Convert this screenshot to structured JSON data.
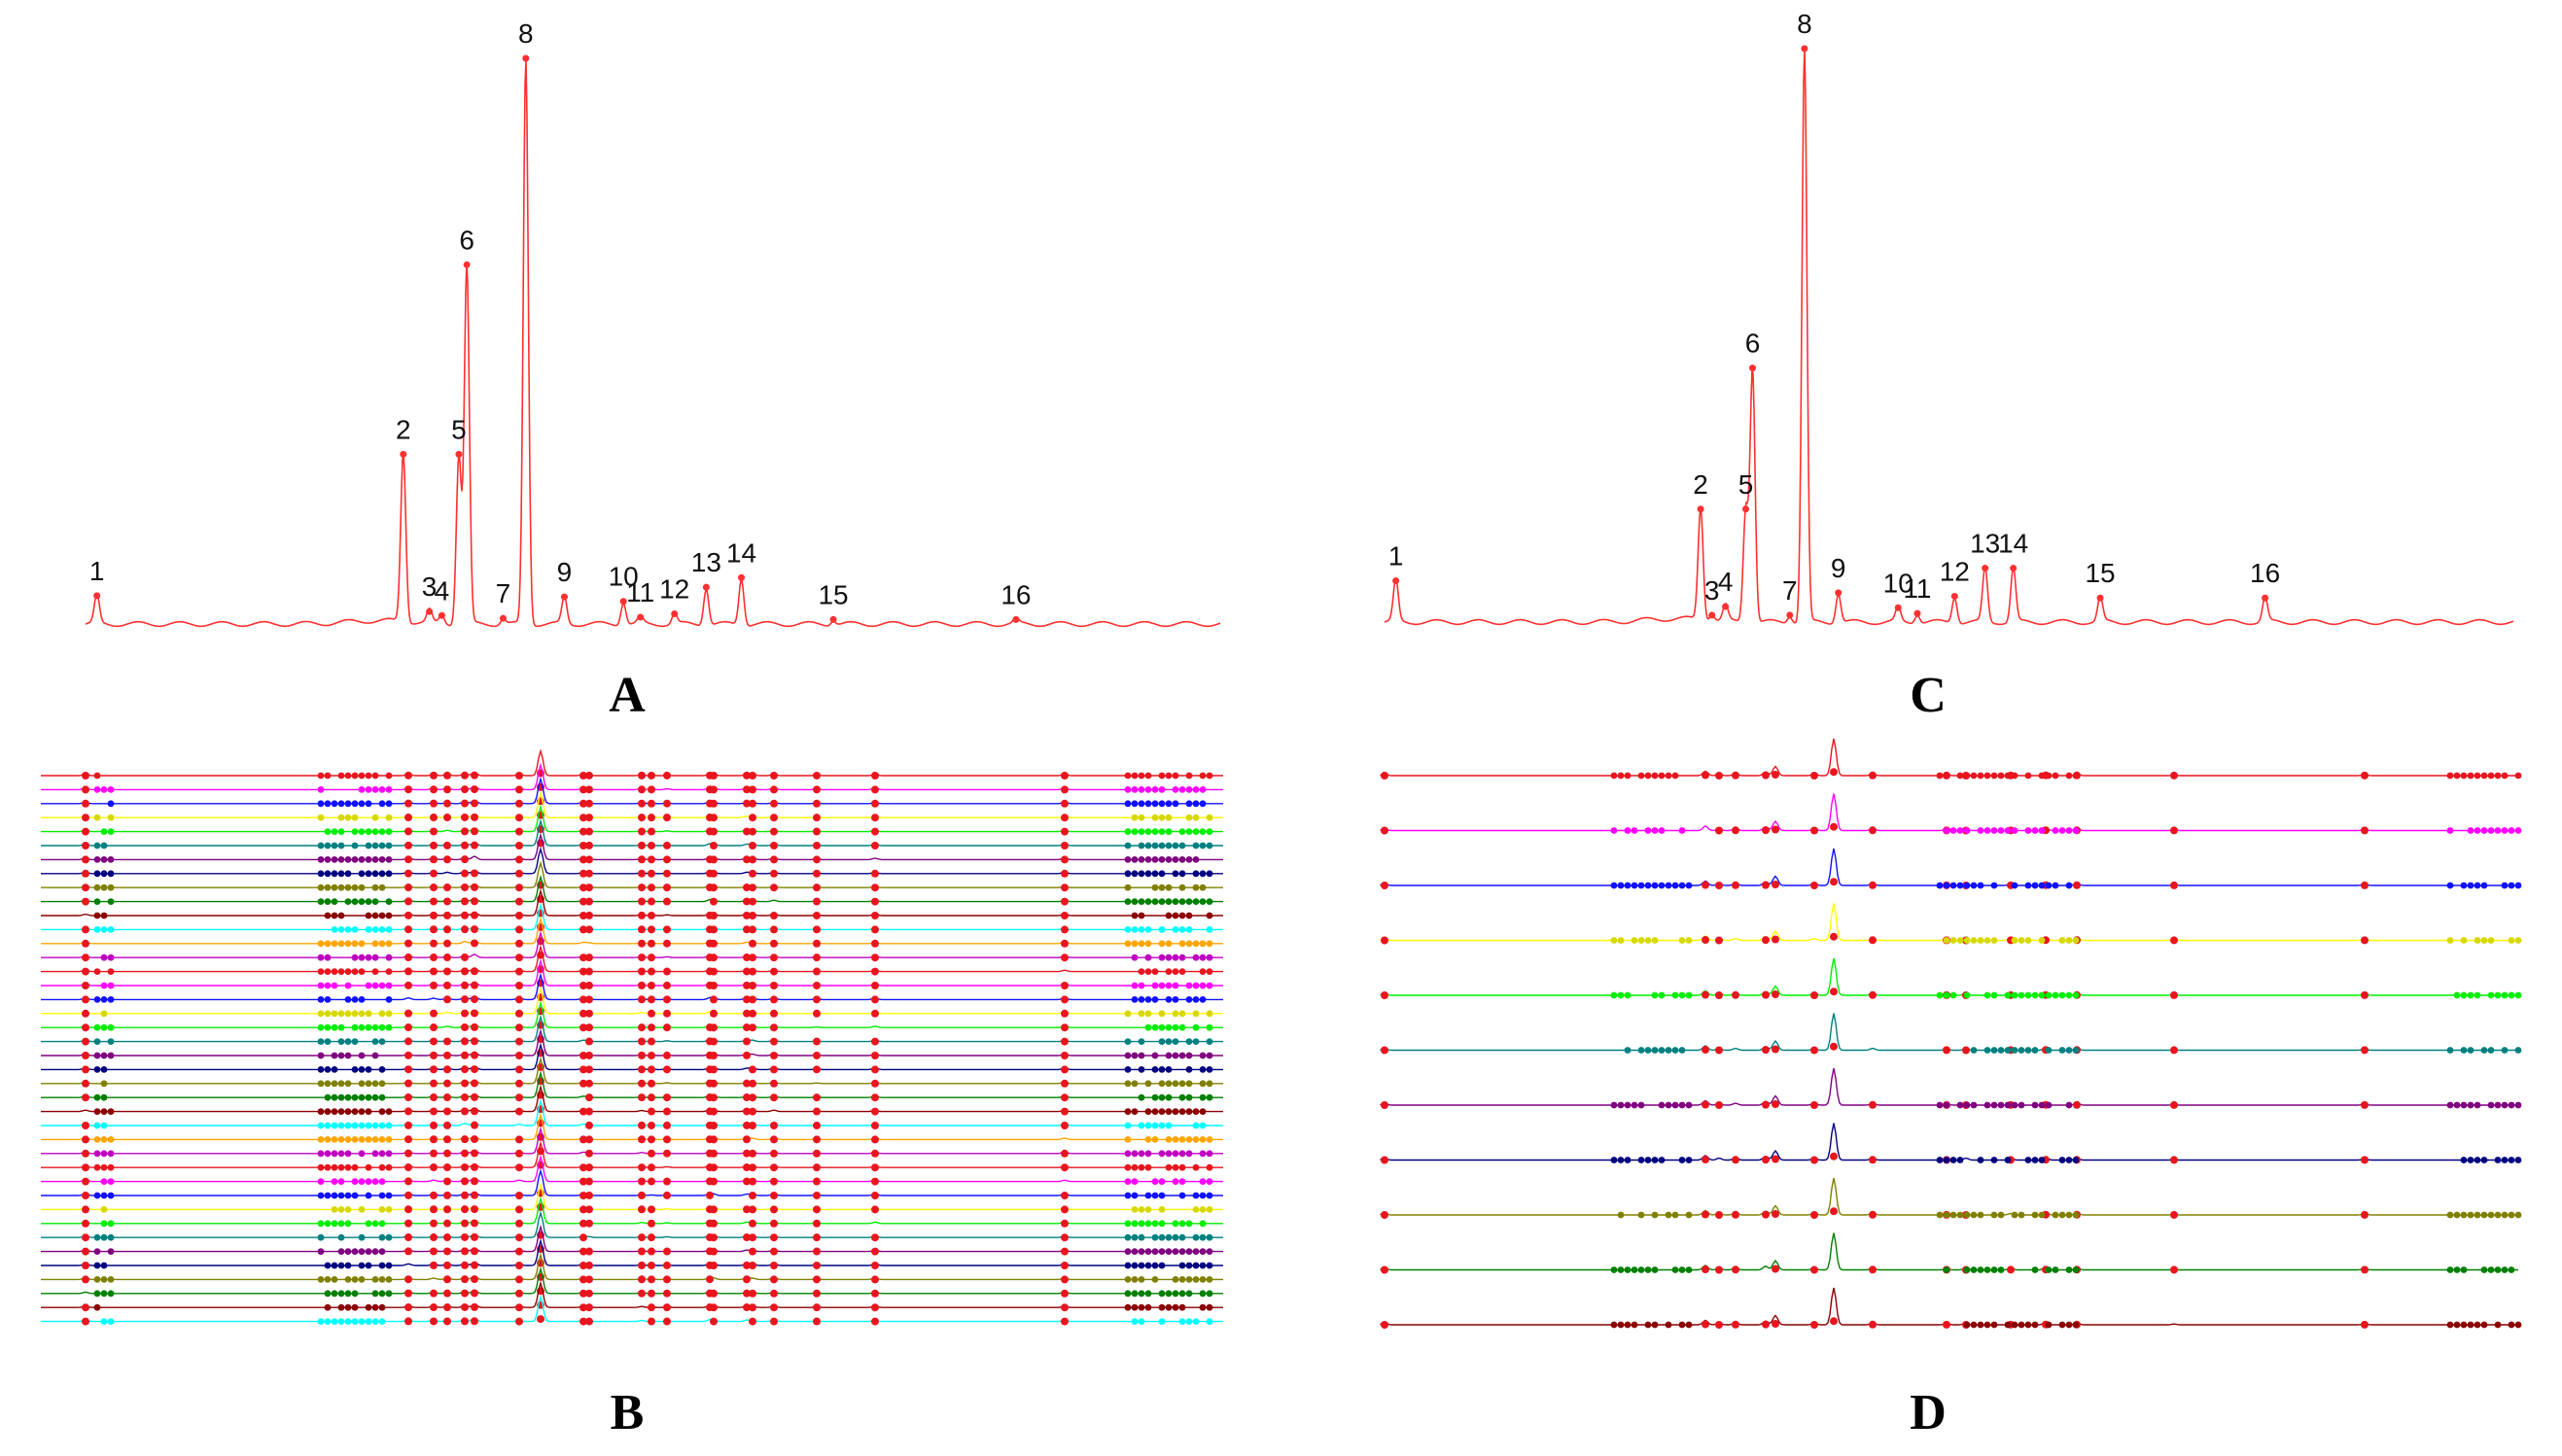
{
  "panels": {
    "A": {
      "letter": "A",
      "type": "line",
      "color": "#ff3030",
      "peaks": [
        {
          "label": "1",
          "rt": 1.0,
          "h": 0.05
        },
        {
          "label": "2",
          "rt": 28.0,
          "h": 0.3
        },
        {
          "label": "3",
          "rt": 30.3,
          "h": 0.022
        },
        {
          "label": "4",
          "rt": 31.4,
          "h": 0.015
        },
        {
          "label": "5",
          "rt": 32.9,
          "h": 0.3
        },
        {
          "label": "6",
          "rt": 33.6,
          "h": 0.635
        },
        {
          "label": "7",
          "rt": 36.8,
          "h": 0.01
        },
        {
          "label": "8",
          "rt": 38.8,
          "h": 1.0
        },
        {
          "label": "9",
          "rt": 42.2,
          "h": 0.048
        },
        {
          "label": "10",
          "rt": 47.4,
          "h": 0.04
        },
        {
          "label": "11",
          "rt": 48.9,
          "h": 0.012
        },
        {
          "label": "12",
          "rt": 51.9,
          "h": 0.018
        },
        {
          "label": "13",
          "rt": 54.7,
          "h": 0.065
        },
        {
          "label": "14",
          "rt": 57.8,
          "h": 0.082
        },
        {
          "label": "15",
          "rt": 65.9,
          "h": 0.008
        },
        {
          "label": "16",
          "rt": 82.0,
          "h": 0.008
        }
      ]
    },
    "C": {
      "letter": "C",
      "type": "line",
      "color": "#ff3030",
      "peaks": [
        {
          "label": "1",
          "rt": 1.0,
          "h": 0.072
        },
        {
          "label": "2",
          "rt": 28.0,
          "h": 0.197
        },
        {
          "label": "3",
          "rt": 29.0,
          "h": 0.012
        },
        {
          "label": "4",
          "rt": 30.2,
          "h": 0.027
        },
        {
          "label": "5",
          "rt": 32.0,
          "h": 0.197
        },
        {
          "label": "6",
          "rt": 32.6,
          "h": 0.443
        },
        {
          "label": "7",
          "rt": 35.9,
          "h": 0.012
        },
        {
          "label": "8",
          "rt": 37.2,
          "h": 1.0
        },
        {
          "label": "9",
          "rt": 40.2,
          "h": 0.051
        },
        {
          "label": "10",
          "rt": 45.5,
          "h": 0.025
        },
        {
          "label": "11",
          "rt": 47.2,
          "h": 0.015
        },
        {
          "label": "12",
          "rt": 50.5,
          "h": 0.045
        },
        {
          "label": "13",
          "rt": 53.2,
          "h": 0.094
        },
        {
          "label": "14",
          "rt": 55.7,
          "h": 0.094
        },
        {
          "label": "15",
          "rt": 63.4,
          "h": 0.042
        },
        {
          "label": "16",
          "rt": 78.0,
          "h": 0.042
        }
      ]
    },
    "B": {
      "letter": "B",
      "type": "line",
      "sample_count": 40
    },
    "D": {
      "letter": "D",
      "type": "line",
      "sample_count": 11
    }
  },
  "chart_data": [
    {
      "panel": "A",
      "type": "line",
      "series": [
        {
          "color": "#ff3030"
        }
      ],
      "peak_labels": [
        "1",
        "2",
        "3",
        "4",
        "5",
        "6",
        "7",
        "8",
        "9",
        "10",
        "11",
        "12",
        "13",
        "14",
        "15",
        "16"
      ]
    },
    {
      "panel": "B",
      "type": "line",
      "series_count": 40
    },
    {
      "panel": "C",
      "type": "line",
      "series": [
        {
          "color": "#ff3030"
        }
      ],
      "peak_labels": [
        "1",
        "2",
        "3",
        "4",
        "5",
        "6",
        "7",
        "8",
        "9",
        "10",
        "11",
        "12",
        "13",
        "14",
        "15",
        "16"
      ]
    },
    {
      "panel": "D",
      "type": "line",
      "series_count": 11
    }
  ],
  "palette": [
    "#e8151e",
    "#ff00ff",
    "#1010ff",
    "#ffff00",
    "#00ee00",
    "#008080",
    "#800080",
    "#000080",
    "#808000",
    "#008000",
    "#8b0000",
    "#00ffff",
    "#ffa500",
    "#c000c0"
  ]
}
